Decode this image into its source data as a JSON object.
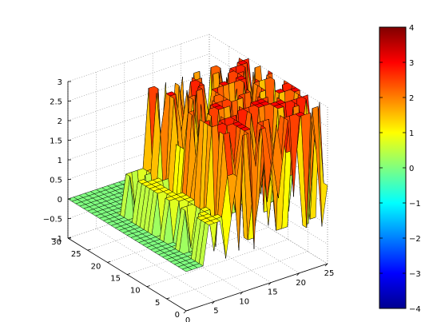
{
  "chart_data": {
    "type": "surface",
    "title": "",
    "xlabel": "",
    "ylabel": "",
    "zlabel": "",
    "grid": true,
    "colormap": "jet",
    "colorbar_position": "right",
    "x_ticks": [
      "0",
      "5",
      "10",
      "15",
      "20",
      "25"
    ],
    "y_ticks": [
      "0",
      "5",
      "10",
      "15",
      "20",
      "25",
      "30"
    ],
    "z_ticks": [
      "−1",
      "−0.5",
      "0",
      "0.5",
      "1",
      "1.5",
      "2",
      "2.5",
      "3"
    ],
    "colorbar_ticks": [
      "4",
      "3",
      "2",
      "1",
      "0",
      "−1",
      "−2",
      "−3",
      "−4"
    ],
    "xlim": [
      0,
      25
    ],
    "ylim": [
      0,
      30
    ],
    "zlim": [
      -1,
      3
    ],
    "clim": [
      -4,
      4
    ],
    "grid_size": [
      25,
      30
    ],
    "z_levels": [
      -1,
      -0.5,
      0,
      1,
      2,
      3
    ]
  }
}
